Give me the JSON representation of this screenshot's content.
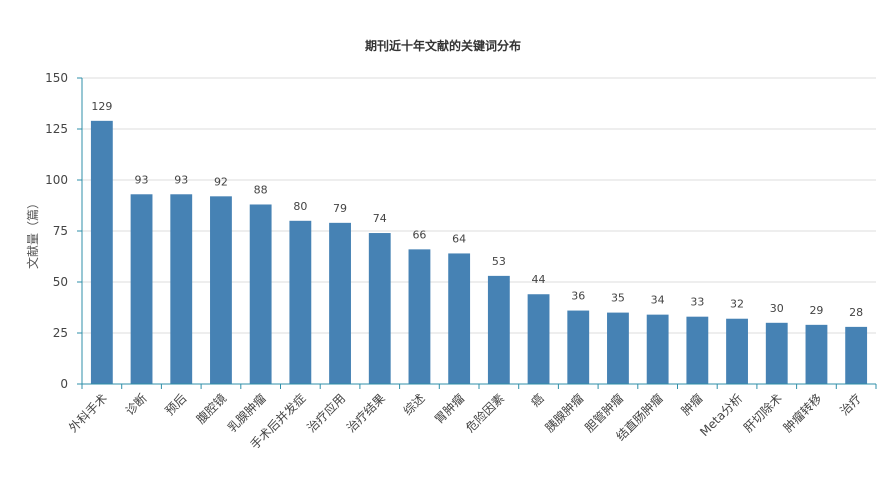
{
  "chart_data": {
    "type": "bar",
    "title": "期刊近十年文献的关键词分布",
    "ylabel": "文献量（篇）",
    "xlabel": "",
    "ylim": [
      0,
      150
    ],
    "yticks": [
      0,
      25,
      50,
      75,
      100,
      125,
      150
    ],
    "grid": true,
    "legend": "none",
    "bar_color": "#4682b4",
    "categories": [
      "外科手术",
      "诊断",
      "预后",
      "腹腔镜",
      "乳腺肿瘤",
      "手术后并发症",
      "治疗应用",
      "治疗结果",
      "综述",
      "胃肿瘤",
      "危险因素",
      "癌",
      "胰腺肿瘤",
      "胆管肿瘤",
      "结直肠肿瘤",
      "肿瘤",
      "Meta分析",
      "肝切除术",
      "肿瘤转移",
      "治疗"
    ],
    "values": [
      129,
      93,
      93,
      92,
      88,
      80,
      79,
      74,
      66,
      64,
      53,
      44,
      36,
      35,
      34,
      33,
      32,
      30,
      29,
      28
    ]
  }
}
